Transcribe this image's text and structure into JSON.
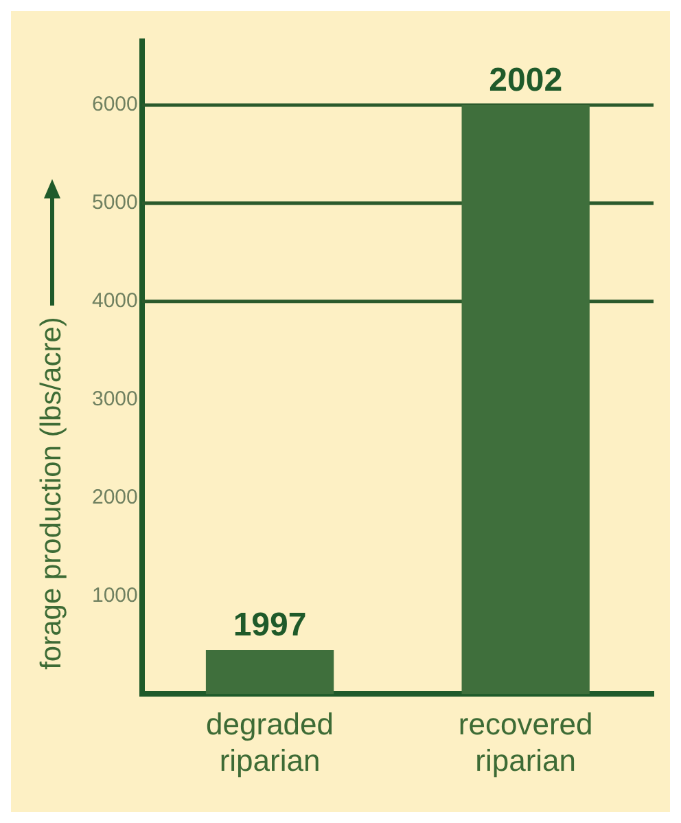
{
  "chart_data": {
    "type": "bar",
    "ylabel": "forage production (lbs/acre)",
    "categories": [
      "degraded riparian",
      "recovered riparian"
    ],
    "values": [
      450,
      6000
    ],
    "color": "#3f6f3c",
    "ylim": [
      0,
      6650
    ],
    "yticks": [
      1000,
      2000,
      3000,
      4000,
      5000,
      6000
    ],
    "grid": false,
    "ref_lines": [
      {
        "axis": "y",
        "value": 4000,
        "color": "#2b5a2c"
      },
      {
        "axis": "y",
        "value": 5000,
        "color": "#2b5a2c"
      },
      {
        "axis": "y",
        "value": 6000,
        "color": "#2b5a2c"
      }
    ],
    "annotations": [
      {
        "text": "1997",
        "x": "degraded riparian",
        "y": 450
      },
      {
        "text": "2002",
        "x": "recovered riparian",
        "y": 6000
      }
    ]
  }
}
